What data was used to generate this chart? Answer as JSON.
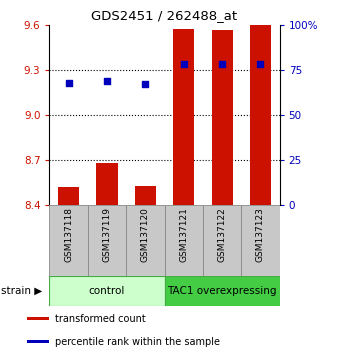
{
  "title": "GDS2451 / 262488_at",
  "samples": [
    "GSM137118",
    "GSM137119",
    "GSM137120",
    "GSM137121",
    "GSM137122",
    "GSM137123"
  ],
  "transformed_counts": [
    8.52,
    8.68,
    8.53,
    9.575,
    9.565,
    9.605
  ],
  "percentile_ranks": [
    68,
    69,
    67,
    78,
    78,
    78
  ],
  "ylim_left": [
    8.4,
    9.6
  ],
  "yticks_left": [
    8.4,
    8.7,
    9.0,
    9.3,
    9.6
  ],
  "ylim_right": [
    0,
    100
  ],
  "ytick_labels_right": [
    "0",
    "25",
    "50",
    "75",
    "100%"
  ],
  "ytick_vals_right": [
    0,
    25,
    50,
    75,
    100
  ],
  "bar_color": "#cc1100",
  "dot_color": "#0000bb",
  "bar_bottom": 8.4,
  "groups": [
    {
      "label": "control",
      "indices": [
        0,
        1,
        2
      ],
      "color": "#ccffcc",
      "border": "#44aa44"
    },
    {
      "label": "TAC1 overexpressing",
      "indices": [
        3,
        4,
        5
      ],
      "color": "#44cc44",
      "border": "#44aa44"
    }
  ],
  "legend_items": [
    {
      "color": "#cc1100",
      "label": "transformed count"
    },
    {
      "color": "#0000bb",
      "label": "percentile rank within the sample"
    }
  ],
  "bar_width": 0.55,
  "grid_yticks": [
    8.7,
    9.0,
    9.3
  ],
  "label_bg_color": "#c8c8c8",
  "label_border_color": "#888888"
}
